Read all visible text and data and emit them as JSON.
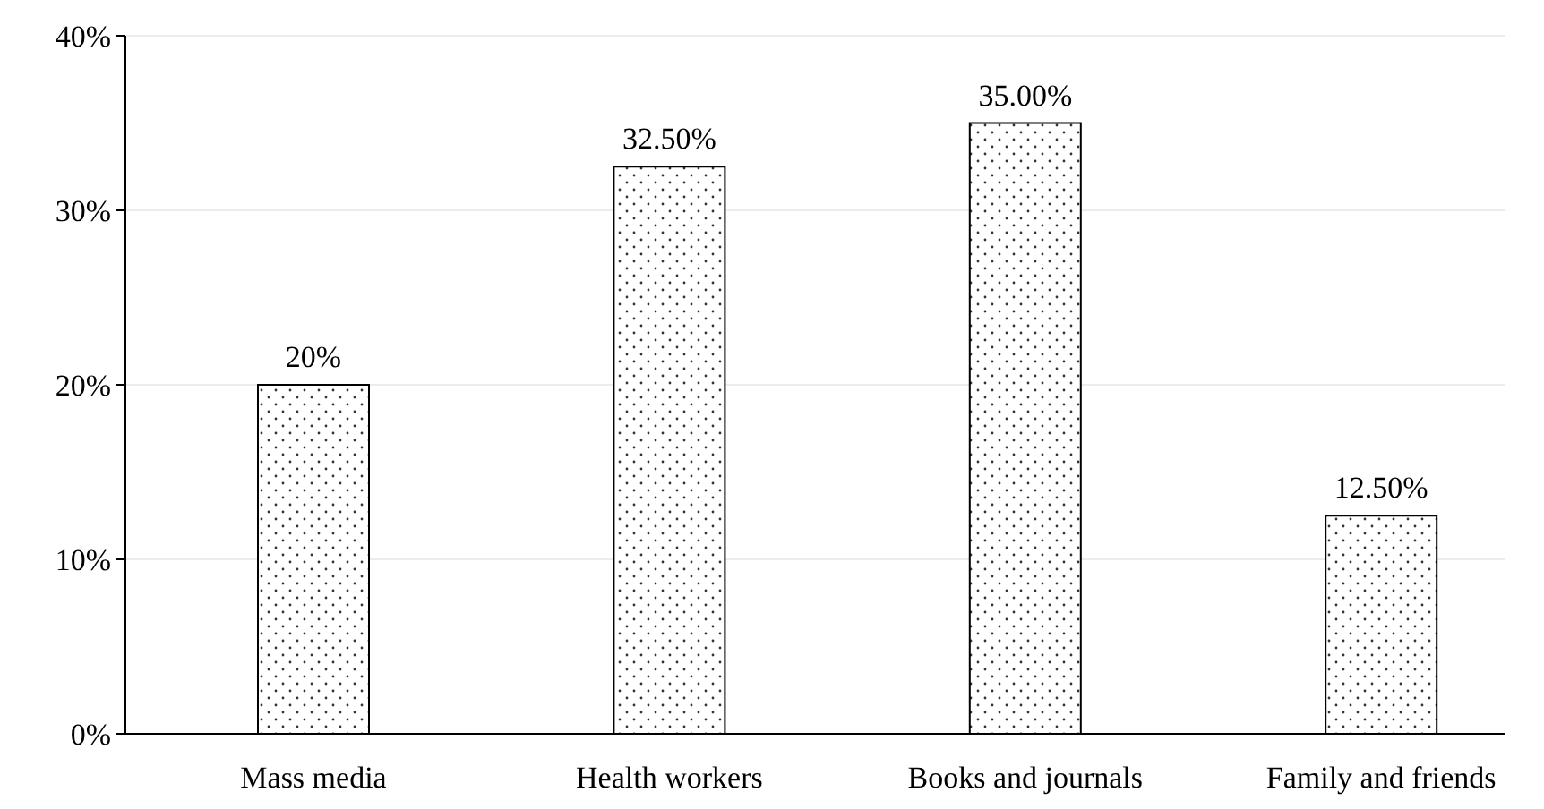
{
  "chart_data": {
    "type": "bar",
    "categories": [
      "Mass media",
      "Health workers",
      "Books and journals",
      "Family and friends"
    ],
    "values": [
      20,
      32.5,
      35,
      12.5
    ],
    "value_labels": [
      "20%",
      "32.50%",
      "35.00%",
      "12.50%"
    ],
    "color": "#ffffff",
    "ylim": [
      0,
      40
    ],
    "yticks": [
      {
        "value": 0,
        "label": "0%"
      },
      {
        "value": 10,
        "label": "10%"
      },
      {
        "value": 20,
        "label": "20%"
      },
      {
        "value": 30,
        "label": "30%"
      },
      {
        "value": 40,
        "label": "40%"
      }
    ],
    "grid": "y"
  }
}
